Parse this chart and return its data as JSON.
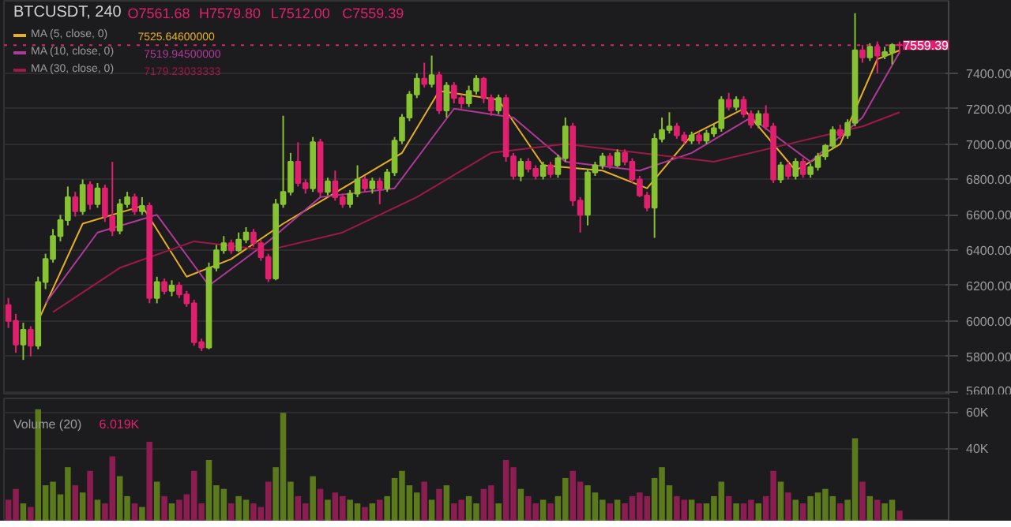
{
  "chart_data": [
    {
      "type": "candlestick",
      "title": "BTCUSDT, 240",
      "categories": [
        null,
        null,
        null,
        null,
        null,
        null,
        null,
        null,
        null,
        null,
        null,
        null,
        null,
        null,
        null,
        null,
        null,
        null,
        null,
        null,
        null,
        null,
        null,
        null,
        null,
        null,
        null,
        null,
        null,
        null,
        null,
        null,
        null,
        null,
        null,
        null,
        null,
        null,
        null,
        null,
        null,
        null,
        null,
        null,
        null,
        null,
        null,
        null,
        null,
        null,
        null,
        null,
        null,
        null,
        null,
        null,
        null,
        null,
        null,
        null,
        null,
        null,
        null,
        null,
        null,
        null,
        null,
        null,
        null,
        null,
        null,
        null,
        null,
        null,
        null,
        null,
        null,
        null,
        null,
        null,
        null,
        null,
        null,
        null,
        null,
        null,
        null,
        null,
        null,
        null,
        null,
        null,
        null,
        null,
        null,
        null,
        null,
        null,
        null,
        null,
        null,
        null,
        null,
        null,
        null,
        null,
        null,
        null,
        null,
        null,
        null,
        null,
        null,
        null,
        null,
        null,
        null,
        null,
        null,
        null,
        null
      ],
      "ohlc": [
        [
          6090,
          6130,
          5960,
          6000
        ],
        [
          6000,
          6040,
          5820,
          5866
        ],
        [
          5866,
          5990,
          5780,
          5950
        ],
        [
          5950,
          5970,
          5800,
          5860
        ],
        [
          5860,
          6250,
          5840,
          6220
        ],
        [
          6220,
          6380,
          6180,
          6350
        ],
        [
          6350,
          6520,
          6330,
          6480
        ],
        [
          6480,
          6600,
          6450,
          6570
        ],
        [
          6570,
          6760,
          6540,
          6700
        ],
        [
          6700,
          6730,
          6590,
          6620
        ],
        [
          6620,
          6800,
          6600,
          6770
        ],
        [
          6770,
          6790,
          6630,
          6660
        ],
        [
          6660,
          6780,
          6640,
          6750
        ],
        [
          6750,
          6770,
          6560,
          6590
        ],
        [
          6590,
          6900,
          6480,
          6510
        ],
        [
          6510,
          6690,
          6490,
          6660
        ],
        [
          6660,
          6730,
          6640,
          6700
        ],
        [
          6700,
          6720,
          6600,
          6620
        ],
        [
          6620,
          6700,
          6600,
          6650
        ],
        [
          6650,
          6670,
          6100,
          6130
        ],
        [
          6130,
          6250,
          6100,
          6220
        ],
        [
          6220,
          6240,
          6150,
          6170
        ],
        [
          6170,
          6230,
          6140,
          6200
        ],
        [
          6200,
          6220,
          6130,
          6150
        ],
        [
          6150,
          6170,
          6080,
          6100
        ],
        [
          6100,
          6120,
          5860,
          5880
        ],
        [
          5880,
          5900,
          5830,
          5850
        ],
        [
          5850,
          6330,
          5840,
          6300
        ],
        [
          6300,
          6430,
          6280,
          6400
        ],
        [
          6400,
          6480,
          6380,
          6440
        ],
        [
          6440,
          6460,
          6380,
          6400
        ],
        [
          6400,
          6500,
          6390,
          6460
        ],
        [
          6460,
          6530,
          6440,
          6500
        ],
        [
          6500,
          6520,
          6420,
          6440
        ],
        [
          6440,
          6460,
          6340,
          6360
        ],
        [
          6360,
          6380,
          6220,
          6240
        ],
        [
          6240,
          6690,
          6230,
          6660
        ],
        [
          6660,
          7160,
          6640,
          6730
        ],
        [
          6730,
          6950,
          6710,
          6900
        ],
        [
          6900,
          7010,
          6760,
          6780
        ],
        [
          6780,
          6800,
          6720,
          6750
        ],
        [
          6750,
          7040,
          6730,
          7010
        ],
        [
          7010,
          7030,
          6700,
          6730
        ],
        [
          6730,
          6810,
          6710,
          6790
        ],
        [
          6790,
          6850,
          6680,
          6700
        ],
        [
          6700,
          6720,
          6640,
          6660
        ],
        [
          6660,
          6740,
          6640,
          6720
        ],
        [
          6720,
          6880,
          6700,
          6800
        ],
        [
          6800,
          6820,
          6730,
          6750
        ],
        [
          6750,
          6810,
          6720,
          6790
        ],
        [
          6790,
          6810,
          6660,
          6750
        ],
        [
          6750,
          6860,
          6730,
          6840
        ],
        [
          6840,
          7040,
          6820,
          7020
        ],
        [
          7020,
          7170,
          7000,
          7150
        ],
        [
          7150,
          7300,
          7130,
          7280
        ],
        [
          7280,
          7400,
          7260,
          7370
        ],
        [
          7370,
          7460,
          7320,
          7340
        ],
        [
          7340,
          7500,
          7320,
          7390
        ],
        [
          7390,
          7410,
          7170,
          7190
        ],
        [
          7190,
          7350,
          7150,
          7330
        ],
        [
          7330,
          7350,
          7230,
          7260
        ],
        [
          7260,
          7280,
          7200,
          7230
        ],
        [
          7230,
          7330,
          7210,
          7300
        ],
        [
          7300,
          7390,
          7280,
          7370
        ],
        [
          7370,
          7380,
          7230,
          7260
        ],
        [
          7260,
          7280,
          7160,
          7190
        ],
        [
          7190,
          7280,
          7170,
          7260
        ],
        [
          7260,
          7280,
          6900,
          6930
        ],
        [
          6930,
          6950,
          6800,
          6820
        ],
        [
          6820,
          6920,
          6790,
          6900
        ],
        [
          6900,
          6920,
          6840,
          6860
        ],
        [
          6860,
          6880,
          6800,
          6820
        ],
        [
          6820,
          6900,
          6800,
          6880
        ],
        [
          6880,
          6900,
          6810,
          6830
        ],
        [
          6830,
          6940,
          6810,
          6920
        ],
        [
          6920,
          7150,
          6900,
          7100
        ],
        [
          7100,
          7120,
          6650,
          6680
        ],
        [
          6680,
          6700,
          6500,
          6600
        ],
        [
          6600,
          6860,
          6540,
          6840
        ],
        [
          6840,
          6900,
          6820,
          6880
        ],
        [
          6880,
          6950,
          6860,
          6930
        ],
        [
          6930,
          6950,
          6860,
          6880
        ],
        [
          6880,
          6970,
          6870,
          6950
        ],
        [
          6950,
          6970,
          6880,
          6900
        ],
        [
          6900,
          6920,
          6780,
          6800
        ],
        [
          6800,
          6820,
          6700,
          6710
        ],
        [
          6710,
          6730,
          6620,
          6640
        ],
        [
          6640,
          7060,
          6470,
          7030
        ],
        [
          7030,
          7150,
          7010,
          7080
        ],
        [
          7080,
          7180,
          7060,
          7100
        ],
        [
          7100,
          7120,
          7030,
          7050
        ],
        [
          7050,
          7070,
          7000,
          7020
        ],
        [
          7020,
          7070,
          7000,
          7050
        ],
        [
          7050,
          7070,
          7000,
          7020
        ],
        [
          7020,
          7080,
          7000,
          7060
        ],
        [
          7060,
          7110,
          7040,
          7090
        ],
        [
          7090,
          7270,
          7070,
          7250
        ],
        [
          7250,
          7290,
          7190,
          7210
        ],
        [
          7210,
          7270,
          7190,
          7250
        ],
        [
          7250,
          7270,
          7150,
          7170
        ],
        [
          7170,
          7190,
          7090,
          7110
        ],
        [
          7110,
          7190,
          7090,
          7170
        ],
        [
          7170,
          7220,
          7080,
          7100
        ],
        [
          7100,
          7120,
          6780,
          6800
        ],
        [
          6800,
          6900,
          6780,
          6880
        ],
        [
          6880,
          6900,
          6800,
          6820
        ],
        [
          6820,
          6920,
          6800,
          6900
        ],
        [
          6900,
          6920,
          6810,
          6830
        ],
        [
          6830,
          6890,
          6810,
          6870
        ],
        [
          6870,
          6950,
          6850,
          6930
        ],
        [
          6930,
          7000,
          6910,
          6990
        ],
        [
          6990,
          7100,
          6970,
          7080
        ],
        [
          7080,
          7110,
          7030,
          7050
        ],
        [
          7050,
          7140,
          7030,
          7120
        ],
        [
          7120,
          7740,
          7100,
          7530
        ],
        [
          7530,
          7560,
          7460,
          7490
        ],
        [
          7490,
          7570,
          7470,
          7550
        ],
        [
          7550,
          7580,
          7400,
          7500
        ],
        [
          7500,
          7550,
          7480,
          7520
        ],
        [
          7520,
          7570,
          7450,
          7560
        ],
        [
          7561.68,
          7579.8,
          7512,
          7559.39
        ]
      ],
      "colors": [
        "#e0206e",
        "#e0206e",
        "#86c232",
        "#e0206e",
        "#86c232",
        "#86c232",
        "#86c232",
        "#86c232",
        "#86c232",
        "#e0206e",
        "#86c232",
        "#e0206e",
        "#86c232",
        "#e0206e",
        "#e0206e",
        "#86c232",
        "#86c232",
        "#e0206e",
        "#86c232",
        "#e0206e",
        "#86c232",
        "#e0206e",
        "#86c232",
        "#e0206e",
        "#e0206e",
        "#e0206e",
        "#e0206e",
        "#86c232",
        "#86c232",
        "#86c232",
        "#e0206e",
        "#86c232",
        "#86c232",
        "#e0206e",
        "#e0206e",
        "#e0206e",
        "#86c232",
        "#86c232",
        "#86c232",
        "#e0206e",
        "#e0206e",
        "#86c232",
        "#e0206e",
        "#86c232",
        "#e0206e",
        "#e0206e",
        "#86c232",
        "#86c232",
        "#e0206e",
        "#86c232",
        "#e0206e",
        "#86c232",
        "#86c232",
        "#86c232",
        "#86c232",
        "#86c232",
        "#e0206e",
        "#86c232",
        "#e0206e",
        "#86c232",
        "#e0206e",
        "#e0206e",
        "#86c232",
        "#86c232",
        "#e0206e",
        "#e0206e",
        "#86c232",
        "#e0206e",
        "#e0206e",
        "#86c232",
        "#e0206e",
        "#e0206e",
        "#86c232",
        "#e0206e",
        "#86c232",
        "#86c232",
        "#e0206e",
        "#e0206e",
        "#86c232",
        "#86c232",
        "#86c232",
        "#e0206e",
        "#86c232",
        "#e0206e",
        "#e0206e",
        "#e0206e",
        "#e0206e",
        "#86c232",
        "#86c232",
        "#86c232",
        "#e0206e",
        "#e0206e",
        "#86c232",
        "#e0206e",
        "#86c232",
        "#86c232",
        "#86c232",
        "#e0206e",
        "#86c232",
        "#e0206e",
        "#e0206e",
        "#86c232",
        "#e0206e",
        "#e0206e",
        "#86c232",
        "#e0206e",
        "#86c232",
        "#e0206e",
        "#86c232",
        "#86c232",
        "#86c232",
        "#86c232",
        "#e0206e",
        "#86c232",
        "#86c232",
        "#e0206e",
        "#86c232",
        "#e0206e",
        "#86c232",
        "#86c232",
        "#e0206e"
      ],
      "series": [
        {
          "name": "MA (5, close, 0)",
          "type": "line",
          "color": "#e8b020",
          "values": [
            null,
            null,
            null,
            null,
            6000,
            null,
            null,
            null,
            null,
            null,
            6550,
            null,
            null,
            null,
            null,
            null,
            null,
            null,
            6650,
            null,
            null,
            null,
            null,
            null,
            6250,
            null,
            null,
            null,
            null,
            null,
            6350,
            null,
            null,
            null,
            null,
            null,
            null,
            6550,
            null,
            null,
            null,
            null,
            null,
            null,
            null,
            6750,
            null,
            null,
            null,
            null,
            null,
            null,
            null,
            6950,
            null,
            null,
            null,
            null,
            7300,
            null,
            null,
            null,
            null,
            null,
            null,
            null,
            7250,
            null,
            null,
            null,
            null,
            null,
            6880,
            null,
            null,
            null,
            null,
            null,
            null,
            null,
            6850,
            null,
            null,
            null,
            null,
            null,
            6750,
            null,
            null,
            null,
            null,
            null,
            7050,
            null,
            null,
            null,
            null,
            null,
            null,
            7200,
            null,
            null,
            null,
            null,
            null,
            null,
            6850,
            null,
            null,
            null,
            null,
            null,
            7000,
            null,
            null,
            null,
            null,
            7480,
            null,
            null,
            7530
          ]
        },
        {
          "name": "MA (10, close, 0)",
          "type": "line",
          "color": "#b03a9a",
          "values": [
            null,
            null,
            null,
            null,
            null,
            6100,
            null,
            null,
            null,
            null,
            null,
            null,
            6500,
            null,
            null,
            null,
            null,
            null,
            null,
            null,
            6600,
            null,
            null,
            null,
            null,
            null,
            null,
            6200,
            null,
            null,
            null,
            null,
            null,
            null,
            null,
            6450,
            null,
            null,
            null,
            null,
            null,
            null,
            6700,
            null,
            null,
            null,
            null,
            null,
            null,
            null,
            null,
            null,
            6750,
            null,
            null,
            null,
            null,
            null,
            null,
            null,
            7200,
            null,
            null,
            null,
            null,
            null,
            null,
            null,
            7150,
            null,
            null,
            null,
            null,
            null,
            null,
            6900,
            null,
            null,
            null,
            null,
            null,
            null,
            null,
            null,
            null,
            6850,
            null,
            null,
            null,
            null,
            null,
            null,
            6950,
            null,
            null,
            null,
            null,
            null,
            null,
            null,
            7150,
            null,
            null,
            null,
            null,
            null,
            null,
            null,
            6900,
            null,
            null,
            null,
            null,
            null,
            null,
            7150,
            null,
            null,
            null,
            null,
            7520
          ]
        },
        {
          "name": "MA (30, close, 0)",
          "type": "line",
          "color": "#a01848",
          "values": [
            null,
            null,
            null,
            null,
            null,
            null,
            6050,
            null,
            null,
            null,
            null,
            null,
            null,
            null,
            null,
            6300,
            null,
            null,
            null,
            null,
            null,
            null,
            null,
            null,
            null,
            6450,
            null,
            null,
            null,
            null,
            null,
            null,
            null,
            null,
            null,
            6400,
            null,
            null,
            null,
            null,
            null,
            null,
            null,
            null,
            null,
            6500,
            null,
            null,
            null,
            null,
            null,
            null,
            null,
            null,
            null,
            6700,
            null,
            null,
            null,
            null,
            null,
            null,
            null,
            null,
            null,
            6950,
            null,
            null,
            null,
            null,
            null,
            null,
            null,
            null,
            null,
            7000,
            null,
            null,
            null,
            null,
            null,
            null,
            null,
            null,
            null,
            6950,
            null,
            null,
            null,
            null,
            null,
            null,
            null,
            null,
            null,
            6900,
            null,
            null,
            null,
            null,
            null,
            null,
            null,
            null,
            null,
            7000,
            null,
            null,
            null,
            null,
            null,
            null,
            null,
            null,
            null,
            7100,
            null,
            null,
            null,
            null,
            7180
          ]
        }
      ],
      "ylim": [
        5580,
        7810
      ],
      "yticks": [
        {
          "value": 5600,
          "label": "5600.00"
        },
        {
          "value": 5800,
          "label": "5800.00"
        },
        {
          "value": 6000,
          "label": "6000.00"
        },
        {
          "value": 6200,
          "label": "6200.00"
        },
        {
          "value": 6400,
          "label": "6400.00"
        },
        {
          "value": 6600,
          "label": "6600.00"
        },
        {
          "value": 6800,
          "label": "6800.00"
        },
        {
          "value": 7000,
          "label": "7000.00"
        },
        {
          "value": 7200,
          "label": "7200.00"
        },
        {
          "value": 7400,
          "label": "7400.00"
        }
      ],
      "ref_lines": [
        {
          "axis": "y",
          "value": 7559.39,
          "label": "7559.39",
          "color": "#e0206e",
          "line_style": "dotted"
        }
      ],
      "tick_labels": "y",
      "grid": "y",
      "legend": "top left",
      "annotations": [
        "O7561.68",
        "H7579.80",
        "L7512.00",
        "C7559.39",
        "7525.64600000",
        "7519.94500000",
        "7179.23033333"
      ]
    },
    {
      "type": "bar",
      "title": "Volume (20)",
      "categories": [
        null,
        null,
        null,
        null,
        null,
        null,
        null,
        null,
        null,
        null,
        null,
        null,
        null,
        null,
        null,
        null,
        null,
        null,
        null,
        null,
        null,
        null,
        null,
        null,
        null,
        null,
        null,
        null,
        null,
        null,
        null,
        null,
        null,
        null,
        null,
        null,
        null,
        null,
        null,
        null,
        null,
        null,
        null,
        null,
        null,
        null,
        null,
        null,
        null,
        null,
        null,
        null,
        null,
        null,
        null,
        null,
        null,
        null,
        null,
        null,
        null,
        null,
        null,
        null,
        null,
        null,
        null,
        null,
        null,
        null,
        null,
        null,
        null,
        null,
        null,
        null,
        null,
        null,
        null,
        null,
        null,
        null,
        null,
        null,
        null,
        null,
        null,
        null,
        null,
        null,
        null,
        null,
        null,
        null,
        null,
        null,
        null,
        null,
        null,
        null,
        null,
        null,
        null,
        null,
        null,
        null,
        null,
        null,
        null,
        null,
        null,
        null,
        null,
        null,
        null,
        null,
        null,
        null,
        null,
        null,
        null
      ],
      "values": [
        12000,
        18000,
        10000,
        8000,
        62000,
        20000,
        22000,
        15000,
        30000,
        20000,
        16000,
        28000,
        12000,
        10000,
        36000,
        25000,
        14000,
        10000,
        8000,
        44000,
        22000,
        14000,
        10000,
        12000,
        15000,
        28000,
        10000,
        34000,
        20000,
        18000,
        10000,
        14000,
        12000,
        10000,
        8000,
        22000,
        30000,
        60000,
        22000,
        14000,
        10000,
        25000,
        18000,
        12000,
        16000,
        14000,
        12000,
        10000,
        8000,
        10000,
        12000,
        14000,
        24000,
        28000,
        20000,
        16000,
        22000,
        12000,
        18000,
        20000,
        10000,
        12000,
        14000,
        10000,
        18000,
        20000,
        10000,
        34000,
        30000,
        18000,
        14000,
        10000,
        12000,
        10000,
        14000,
        24000,
        28000,
        22000,
        20000,
        16000,
        12000,
        10000,
        12000,
        10000,
        14000,
        16000,
        14000,
        24000,
        30000,
        20000,
        14000,
        12000,
        12000,
        10000,
        10000,
        14000,
        22000,
        14000,
        10000,
        10000,
        12000,
        10000,
        14000,
        28000,
        22000,
        16000,
        12000,
        10000,
        14000,
        16000,
        18000,
        14000,
        10000,
        12000,
        46000,
        22000,
        14000,
        12000,
        10000,
        12000,
        6000
      ],
      "colors": [
        "#8c1d50",
        "#8c1d50",
        "#5b7a1c",
        "#8c1d50",
        "#5b7a1c",
        "#5b7a1c",
        "#5b7a1c",
        "#5b7a1c",
        "#5b7a1c",
        "#8c1d50",
        "#5b7a1c",
        "#8c1d50",
        "#5b7a1c",
        "#8c1d50",
        "#8c1d50",
        "#5b7a1c",
        "#5b7a1c",
        "#8c1d50",
        "#5b7a1c",
        "#8c1d50",
        "#5b7a1c",
        "#8c1d50",
        "#5b7a1c",
        "#8c1d50",
        "#8c1d50",
        "#8c1d50",
        "#8c1d50",
        "#5b7a1c",
        "#5b7a1c",
        "#5b7a1c",
        "#8c1d50",
        "#5b7a1c",
        "#5b7a1c",
        "#8c1d50",
        "#8c1d50",
        "#8c1d50",
        "#5b7a1c",
        "#5b7a1c",
        "#5b7a1c",
        "#8c1d50",
        "#8c1d50",
        "#5b7a1c",
        "#8c1d50",
        "#5b7a1c",
        "#8c1d50",
        "#8c1d50",
        "#5b7a1c",
        "#5b7a1c",
        "#8c1d50",
        "#5b7a1c",
        "#8c1d50",
        "#5b7a1c",
        "#5b7a1c",
        "#5b7a1c",
        "#5b7a1c",
        "#5b7a1c",
        "#8c1d50",
        "#5b7a1c",
        "#8c1d50",
        "#5b7a1c",
        "#8c1d50",
        "#8c1d50",
        "#5b7a1c",
        "#5b7a1c",
        "#8c1d50",
        "#8c1d50",
        "#5b7a1c",
        "#8c1d50",
        "#8c1d50",
        "#5b7a1c",
        "#8c1d50",
        "#8c1d50",
        "#5b7a1c",
        "#8c1d50",
        "#5b7a1c",
        "#5b7a1c",
        "#8c1d50",
        "#8c1d50",
        "#5b7a1c",
        "#5b7a1c",
        "#5b7a1c",
        "#8c1d50",
        "#5b7a1c",
        "#8c1d50",
        "#8c1d50",
        "#8c1d50",
        "#8c1d50",
        "#5b7a1c",
        "#5b7a1c",
        "#5b7a1c",
        "#8c1d50",
        "#8c1d50",
        "#5b7a1c",
        "#8c1d50",
        "#5b7a1c",
        "#5b7a1c",
        "#5b7a1c",
        "#8c1d50",
        "#5b7a1c",
        "#8c1d50",
        "#8c1d50",
        "#5b7a1c",
        "#8c1d50",
        "#8c1d50",
        "#5b7a1c",
        "#8c1d50",
        "#5b7a1c",
        "#8c1d50",
        "#5b7a1c",
        "#5b7a1c",
        "#5b7a1c",
        "#5b7a1c",
        "#8c1d50",
        "#5b7a1c",
        "#5b7a1c",
        "#8c1d50",
        "#5b7a1c",
        "#8c1d50",
        "#5b7a1c",
        "#5b7a1c",
        "#8c1d50"
      ],
      "ylim": [
        0,
        68000
      ],
      "yticks": [
        {
          "value": 40000,
          "label": "40K"
        },
        {
          "value": 60000,
          "label": "60K"
        }
      ],
      "tick_labels": "y",
      "grid": "y",
      "annotations": [
        "6.019K"
      ]
    }
  ]
}
